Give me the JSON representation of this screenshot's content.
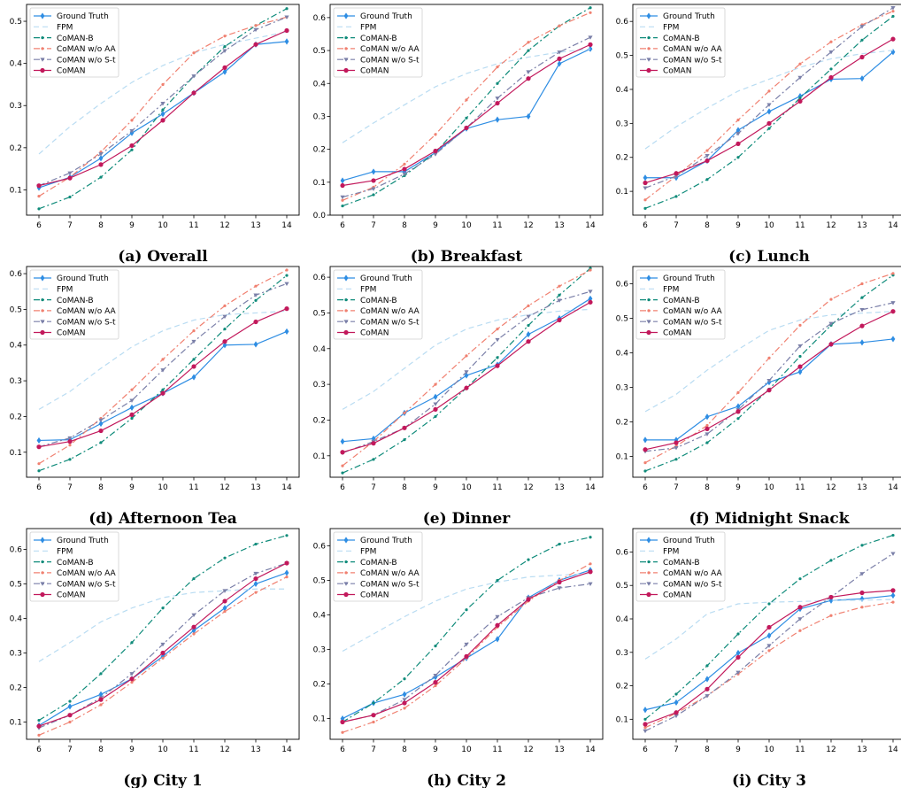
{
  "series_styles": [
    {
      "name": "Ground Truth",
      "color": "#2e8de3",
      "dash": "",
      "marker": "diamond"
    },
    {
      "name": "FPM",
      "color": "#b9dcf2",
      "dash": "6,4",
      "marker": "none"
    },
    {
      "name": "CoMAN-B",
      "color": "#0f8b7a",
      "dash": "7,3,2,3",
      "marker": "dot"
    },
    {
      "name": "CoMAN w/o AA",
      "color": "#f08070",
      "dash": "7,3,2,3",
      "marker": "dot"
    },
    {
      "name": "CoMAN w/o S-t",
      "color": "#7a7fa8",
      "dash": "7,3,2,3",
      "marker": "tri"
    },
    {
      "name": "CoMAN",
      "color": "#c2185b",
      "dash": "",
      "marker": "circle"
    }
  ],
  "chart_data": [
    {
      "type": "line",
      "caption": "(a) Overall",
      "x": [
        6,
        7,
        8,
        9,
        10,
        11,
        12,
        13,
        14
      ],
      "ylim": [
        0.04,
        0.54
      ],
      "yticks": [
        0.1,
        0.2,
        0.3,
        0.4,
        0.5
      ],
      "series": [
        {
          "name": "Ground Truth",
          "values": [
            0.105,
            0.13,
            0.175,
            0.235,
            0.28,
            0.33,
            0.38,
            0.445,
            0.452
          ]
        },
        {
          "name": "FPM",
          "values": [
            0.185,
            0.25,
            0.305,
            0.355,
            0.395,
            0.425,
            0.445,
            0.46,
            0.475
          ]
        },
        {
          "name": "CoMAN-B",
          "values": [
            0.055,
            0.083,
            0.13,
            0.195,
            0.29,
            0.37,
            0.44,
            0.49,
            0.53
          ]
        },
        {
          "name": "CoMAN w/o AA",
          "values": [
            0.085,
            0.13,
            0.19,
            0.265,
            0.35,
            0.425,
            0.465,
            0.49,
            0.51
          ]
        },
        {
          "name": "CoMAN w/o S-t",
          "values": [
            0.11,
            0.14,
            0.185,
            0.24,
            0.305,
            0.37,
            0.43,
            0.48,
            0.51
          ]
        },
        {
          "name": "CoMAN",
          "values": [
            0.11,
            0.128,
            0.16,
            0.205,
            0.265,
            0.33,
            0.39,
            0.445,
            0.478
          ]
        }
      ]
    },
    {
      "type": "line",
      "caption": "(b) Breakfast",
      "x": [
        6,
        7,
        8,
        9,
        10,
        11,
        12,
        13,
        14
      ],
      "ylim": [
        0.0,
        0.64
      ],
      "yticks": [
        0.0,
        0.1,
        0.2,
        0.3,
        0.4,
        0.5,
        0.6
      ],
      "series": [
        {
          "name": "Ground Truth",
          "values": [
            0.105,
            0.132,
            0.132,
            0.19,
            0.263,
            0.29,
            0.3,
            0.46,
            0.505
          ]
        },
        {
          "name": "FPM",
          "values": [
            0.22,
            0.28,
            0.335,
            0.39,
            0.43,
            0.46,
            0.48,
            0.495,
            0.505
          ]
        },
        {
          "name": "CoMAN-B",
          "values": [
            0.028,
            0.062,
            0.12,
            0.19,
            0.295,
            0.4,
            0.5,
            0.575,
            0.63
          ]
        },
        {
          "name": "CoMAN w/o AA",
          "values": [
            0.045,
            0.085,
            0.155,
            0.245,
            0.35,
            0.45,
            0.525,
            0.575,
            0.615
          ]
        },
        {
          "name": "CoMAN w/o S-t",
          "values": [
            0.055,
            0.08,
            0.125,
            0.185,
            0.265,
            0.355,
            0.435,
            0.495,
            0.54
          ]
        },
        {
          "name": "CoMAN",
          "values": [
            0.09,
            0.105,
            0.14,
            0.195,
            0.265,
            0.34,
            0.415,
            0.475,
            0.518
          ]
        }
      ]
    },
    {
      "type": "line",
      "caption": "(c) Lunch",
      "x": [
        6,
        7,
        8,
        9,
        10,
        11,
        12,
        13,
        14
      ],
      "ylim": [
        0.03,
        0.65
      ],
      "yticks": [
        0.1,
        0.2,
        0.3,
        0.4,
        0.5,
        0.6
      ],
      "series": [
        {
          "name": "Ground Truth",
          "values": [
            0.14,
            0.14,
            0.19,
            0.28,
            0.335,
            0.38,
            0.43,
            0.432,
            0.51
          ]
        },
        {
          "name": "FPM",
          "values": [
            0.225,
            0.29,
            0.345,
            0.395,
            0.43,
            0.465,
            0.49,
            0.505,
            0.515
          ]
        },
        {
          "name": "CoMAN-B",
          "values": [
            0.05,
            0.085,
            0.135,
            0.2,
            0.285,
            0.375,
            0.46,
            0.545,
            0.615
          ]
        },
        {
          "name": "CoMAN w/o AA",
          "values": [
            0.075,
            0.145,
            0.22,
            0.31,
            0.395,
            0.475,
            0.54,
            0.59,
            0.63
          ]
        },
        {
          "name": "CoMAN w/o S-t",
          "values": [
            0.11,
            0.145,
            0.205,
            0.27,
            0.355,
            0.435,
            0.51,
            0.585,
            0.64
          ]
        },
        {
          "name": "CoMAN",
          "values": [
            0.125,
            0.153,
            0.19,
            0.24,
            0.3,
            0.365,
            0.435,
            0.495,
            0.548
          ]
        }
      ]
    },
    {
      "type": "line",
      "caption": "(d) Afternoon Tea",
      "x": [
        6,
        7,
        8,
        9,
        10,
        11,
        12,
        13,
        14
      ],
      "ylim": [
        0.03,
        0.62
      ],
      "yticks": [
        0.1,
        0.2,
        0.3,
        0.4,
        0.5,
        0.6
      ],
      "series": [
        {
          "name": "Ground Truth",
          "values": [
            0.133,
            0.135,
            0.18,
            0.225,
            0.265,
            0.31,
            0.4,
            0.402,
            0.438
          ]
        },
        {
          "name": "FPM",
          "values": [
            0.22,
            0.27,
            0.335,
            0.395,
            0.44,
            0.47,
            0.485,
            0.49,
            0.495
          ]
        },
        {
          "name": "CoMAN-B",
          "values": [
            0.048,
            0.08,
            0.127,
            0.195,
            0.275,
            0.36,
            0.445,
            0.525,
            0.595
          ]
        },
        {
          "name": "CoMAN w/o AA",
          "values": [
            0.068,
            0.12,
            0.195,
            0.275,
            0.36,
            0.44,
            0.51,
            0.565,
            0.61
          ]
        },
        {
          "name": "CoMAN w/o S-t",
          "values": [
            0.115,
            0.14,
            0.19,
            0.245,
            0.33,
            0.41,
            0.48,
            0.54,
            0.572
          ]
        },
        {
          "name": "CoMAN",
          "values": [
            0.115,
            0.13,
            0.16,
            0.205,
            0.265,
            0.34,
            0.41,
            0.465,
            0.502
          ]
        }
      ]
    },
    {
      "type": "line",
      "caption": "(e) Dinner",
      "x": [
        6,
        7,
        8,
        9,
        10,
        11,
        12,
        13,
        14
      ],
      "ylim": [
        0.04,
        0.63
      ],
      "yticks": [
        0.1,
        0.2,
        0.3,
        0.4,
        0.5,
        0.6
      ],
      "series": [
        {
          "name": "Ground Truth",
          "values": [
            0.14,
            0.148,
            0.22,
            0.265,
            0.325,
            0.355,
            0.44,
            0.485,
            0.54
          ]
        },
        {
          "name": "FPM",
          "values": [
            0.23,
            0.28,
            0.345,
            0.41,
            0.455,
            0.48,
            0.495,
            0.505,
            0.51
          ]
        },
        {
          "name": "CoMAN-B",
          "values": [
            0.052,
            0.09,
            0.145,
            0.21,
            0.29,
            0.375,
            0.465,
            0.55,
            0.625
          ]
        },
        {
          "name": "CoMAN w/o AA",
          "values": [
            0.072,
            0.14,
            0.22,
            0.3,
            0.38,
            0.455,
            0.52,
            0.575,
            0.62
          ]
        },
        {
          "name": "CoMAN w/o S-t",
          "values": [
            0.108,
            0.14,
            0.178,
            0.245,
            0.335,
            0.425,
            0.49,
            0.535,
            0.56
          ]
        },
        {
          "name": "CoMAN",
          "values": [
            0.11,
            0.135,
            0.178,
            0.23,
            0.29,
            0.352,
            0.42,
            0.48,
            0.53
          ]
        }
      ]
    },
    {
      "type": "line",
      "caption": "(f) Midnight Snack",
      "x": [
        6,
        7,
        8,
        9,
        10,
        11,
        12,
        13,
        14
      ],
      "ylim": [
        0.04,
        0.65
      ],
      "yticks": [
        0.1,
        0.2,
        0.3,
        0.4,
        0.5,
        0.6
      ],
      "series": [
        {
          "name": "Ground Truth",
          "values": [
            0.148,
            0.148,
            0.215,
            0.245,
            0.315,
            0.345,
            0.425,
            0.43,
            0.44
          ]
        },
        {
          "name": "FPM",
          "values": [
            0.23,
            0.28,
            0.35,
            0.41,
            0.465,
            0.495,
            0.51,
            0.515,
            0.52
          ]
        },
        {
          "name": "CoMAN-B",
          "values": [
            0.058,
            0.092,
            0.14,
            0.21,
            0.295,
            0.39,
            0.48,
            0.56,
            0.625
          ]
        },
        {
          "name": "CoMAN w/o AA",
          "values": [
            0.082,
            0.13,
            0.19,
            0.285,
            0.385,
            0.48,
            0.555,
            0.6,
            0.63
          ]
        },
        {
          "name": "CoMAN w/o S-t",
          "values": [
            0.115,
            0.125,
            0.165,
            0.235,
            0.32,
            0.42,
            0.485,
            0.525,
            0.545
          ]
        },
        {
          "name": "CoMAN",
          "values": [
            0.12,
            0.14,
            0.18,
            0.23,
            0.292,
            0.36,
            0.425,
            0.478,
            0.52
          ]
        }
      ]
    },
    {
      "type": "line",
      "caption": "(g) City 1",
      "x": [
        6,
        7,
        8,
        9,
        10,
        11,
        12,
        13,
        14
      ],
      "ylim": [
        0.05,
        0.66
      ],
      "yticks": [
        0.1,
        0.2,
        0.3,
        0.4,
        0.5,
        0.6
      ],
      "series": [
        {
          "name": "Ground Truth",
          "values": [
            0.09,
            0.145,
            0.18,
            0.225,
            0.29,
            0.365,
            0.43,
            0.5,
            0.532
          ]
        },
        {
          "name": "FPM",
          "values": [
            0.275,
            0.33,
            0.39,
            0.43,
            0.46,
            0.475,
            0.48,
            0.485,
            0.485
          ]
        },
        {
          "name": "CoMAN-B",
          "values": [
            0.105,
            0.16,
            0.24,
            0.33,
            0.43,
            0.515,
            0.575,
            0.615,
            0.64
          ]
        },
        {
          "name": "CoMAN w/o AA",
          "values": [
            0.062,
            0.1,
            0.15,
            0.215,
            0.285,
            0.355,
            0.42,
            0.475,
            0.52
          ]
        },
        {
          "name": "CoMAN w/o S-t",
          "values": [
            0.083,
            0.12,
            0.17,
            0.24,
            0.325,
            0.41,
            0.48,
            0.53,
            0.56
          ]
        },
        {
          "name": "CoMAN",
          "values": [
            0.088,
            0.12,
            0.165,
            0.225,
            0.3,
            0.375,
            0.45,
            0.515,
            0.56
          ]
        }
      ]
    },
    {
      "type": "line",
      "caption": "(h) City 2",
      "x": [
        6,
        7,
        8,
        9,
        10,
        11,
        12,
        13,
        14
      ],
      "ylim": [
        0.04,
        0.65
      ],
      "yticks": [
        0.1,
        0.2,
        0.3,
        0.4,
        0.5,
        0.6
      ],
      "series": [
        {
          "name": "Ground Truth",
          "values": [
            0.1,
            0.145,
            0.17,
            0.22,
            0.275,
            0.33,
            0.45,
            0.5,
            0.53
          ]
        },
        {
          "name": "FPM",
          "values": [
            0.295,
            0.345,
            0.395,
            0.44,
            0.475,
            0.495,
            0.51,
            0.515,
            0.52
          ]
        },
        {
          "name": "CoMAN-B",
          "values": [
            0.09,
            0.145,
            0.215,
            0.31,
            0.415,
            0.5,
            0.56,
            0.605,
            0.625
          ]
        },
        {
          "name": "CoMAN w/o AA",
          "values": [
            0.06,
            0.09,
            0.13,
            0.195,
            0.275,
            0.365,
            0.44,
            0.5,
            0.548
          ]
        },
        {
          "name": "CoMAN w/o S-t",
          "values": [
            0.09,
            0.11,
            0.155,
            0.225,
            0.315,
            0.395,
            0.45,
            0.478,
            0.49
          ]
        },
        {
          "name": "CoMAN",
          "values": [
            0.09,
            0.11,
            0.145,
            0.205,
            0.28,
            0.37,
            0.445,
            0.495,
            0.525
          ]
        }
      ]
    },
    {
      "type": "line",
      "caption": "(i) City 3",
      "x": [
        6,
        7,
        8,
        9,
        10,
        11,
        12,
        13,
        14
      ],
      "ylim": [
        0.04,
        0.67
      ],
      "yticks": [
        0.1,
        0.2,
        0.3,
        0.4,
        0.5,
        0.6
      ],
      "series": [
        {
          "name": "Ground Truth",
          "values": [
            0.128,
            0.15,
            0.22,
            0.298,
            0.35,
            0.43,
            0.455,
            0.46,
            0.47
          ]
        },
        {
          "name": "FPM",
          "values": [
            0.28,
            0.34,
            0.415,
            0.445,
            0.45,
            0.452,
            0.455,
            0.456,
            0.458
          ]
        },
        {
          "name": "CoMAN-B",
          "values": [
            0.1,
            0.175,
            0.26,
            0.355,
            0.445,
            0.52,
            0.575,
            0.62,
            0.65
          ]
        },
        {
          "name": "CoMAN w/o AA",
          "values": [
            0.075,
            0.118,
            0.17,
            0.235,
            0.305,
            0.365,
            0.41,
            0.435,
            0.45
          ]
        },
        {
          "name": "CoMAN w/o S-t",
          "values": [
            0.065,
            0.11,
            0.17,
            0.24,
            0.32,
            0.4,
            0.465,
            0.535,
            0.595
          ]
        },
        {
          "name": "CoMAN",
          "values": [
            0.085,
            0.12,
            0.19,
            0.285,
            0.375,
            0.435,
            0.465,
            0.478,
            0.485
          ]
        }
      ]
    }
  ]
}
